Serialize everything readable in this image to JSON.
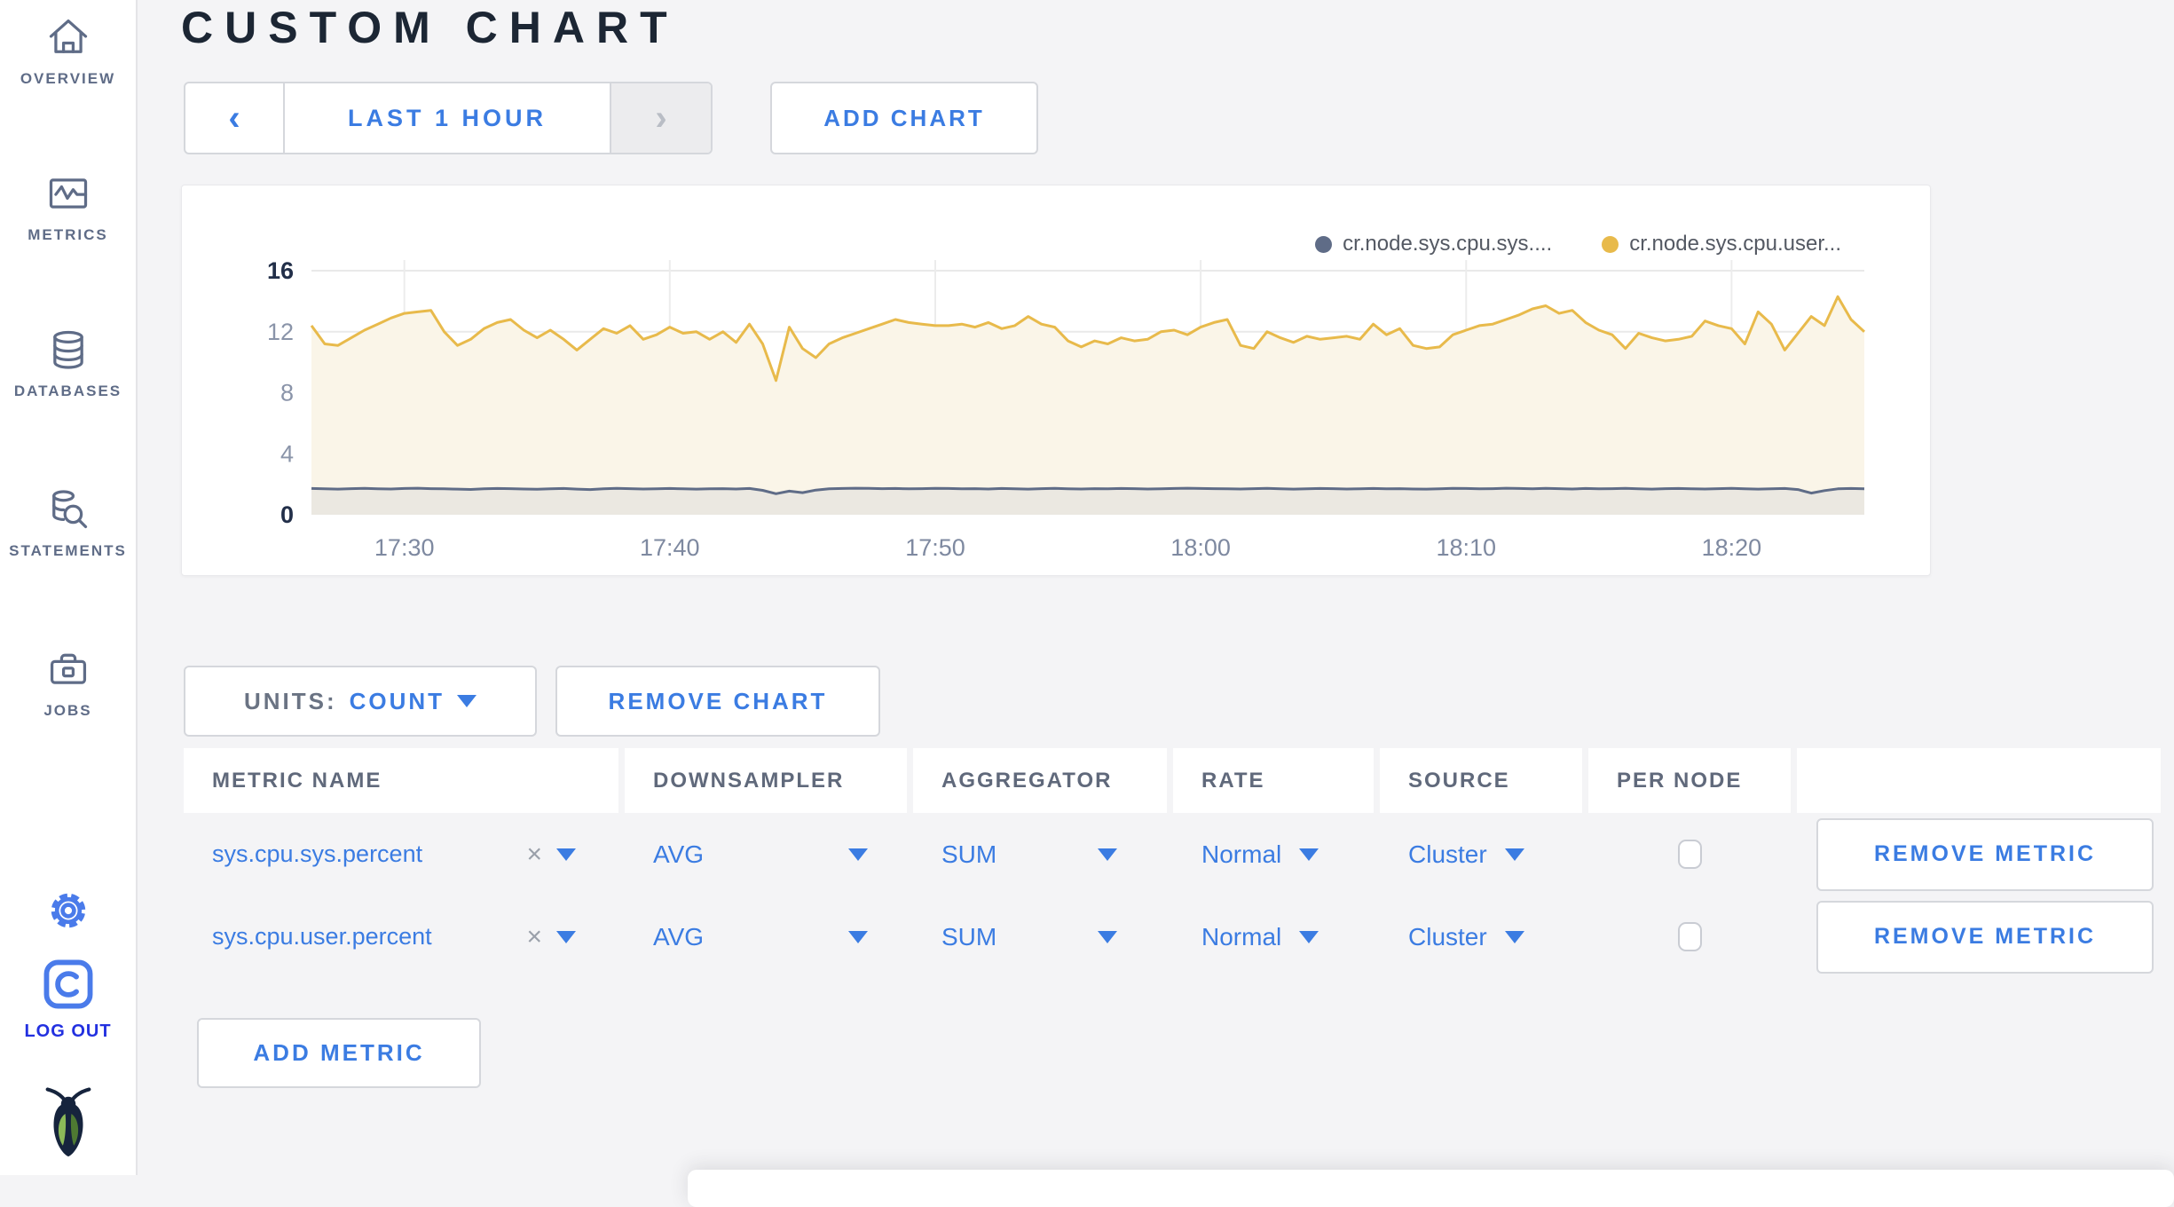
{
  "sidebar": {
    "items": [
      {
        "label": "OVERVIEW"
      },
      {
        "label": "METRICS"
      },
      {
        "label": "DATABASES"
      },
      {
        "label": "STATEMENTS"
      },
      {
        "label": "JOBS"
      }
    ],
    "logout_label": "LOG OUT"
  },
  "header": {
    "title": "CUSTOM CHART"
  },
  "toolbar": {
    "time_range_label": "LAST 1 HOUR",
    "prev_arrow": "‹",
    "next_arrow": "›",
    "add_chart_label": "ADD CHART"
  },
  "chart_controls": {
    "units_label": "UNITS:",
    "units_value": "COUNT",
    "remove_chart_label": "REMOVE CHART",
    "add_metric_label": "ADD METRIC"
  },
  "table": {
    "headers": [
      "METRIC NAME",
      "DOWNSAMPLER",
      "AGGREGATOR",
      "RATE",
      "SOURCE",
      "PER NODE"
    ],
    "clear_glyph": "×",
    "rows": [
      {
        "metric_name": "sys.cpu.sys.percent",
        "downsampler": "AVG",
        "aggregator": "SUM",
        "rate": "Normal",
        "source": "Cluster",
        "per_node_checked": false,
        "remove_label": "REMOVE METRIC"
      },
      {
        "metric_name": "sys.cpu.user.percent",
        "downsampler": "AVG",
        "aggregator": "SUM",
        "rate": "Normal",
        "source": "Cluster",
        "per_node_checked": false,
        "remove_label": "REMOVE METRIC"
      }
    ]
  },
  "chart_data": {
    "type": "area",
    "title": "",
    "xlabel": "",
    "ylabel": "",
    "ylim": [
      0,
      16
    ],
    "y_ticks": [
      0,
      4,
      8,
      12,
      16
    ],
    "grid": true,
    "legend_position": "top-right",
    "x_tick_labels": [
      "17:30",
      "17:40",
      "17:50",
      "18:00",
      "18:10",
      "18:20"
    ],
    "x_tick_indices": [
      7,
      27,
      47,
      67,
      87,
      107
    ],
    "series": [
      {
        "name": "cr.node.sys.cpu.sys....",
        "color": "#5f6c87",
        "fill": "#ebe8e1",
        "values": [
          1.72,
          1.7,
          1.68,
          1.71,
          1.73,
          1.7,
          1.69,
          1.72,
          1.74,
          1.71,
          1.7,
          1.68,
          1.66,
          1.7,
          1.72,
          1.71,
          1.69,
          1.67,
          1.7,
          1.72,
          1.68,
          1.65,
          1.7,
          1.73,
          1.71,
          1.69,
          1.7,
          1.72,
          1.7,
          1.68,
          1.7,
          1.71,
          1.69,
          1.72,
          1.6,
          1.38,
          1.55,
          1.45,
          1.62,
          1.7,
          1.72,
          1.74,
          1.73,
          1.71,
          1.72,
          1.7,
          1.71,
          1.73,
          1.72,
          1.7,
          1.71,
          1.69,
          1.72,
          1.7,
          1.68,
          1.71,
          1.73,
          1.7,
          1.69,
          1.71,
          1.7,
          1.72,
          1.71,
          1.69,
          1.7,
          1.72,
          1.74,
          1.72,
          1.71,
          1.7,
          1.69,
          1.71,
          1.73,
          1.7,
          1.68,
          1.7,
          1.72,
          1.71,
          1.69,
          1.7,
          1.72,
          1.7,
          1.71,
          1.69,
          1.68,
          1.7,
          1.73,
          1.72,
          1.7,
          1.71,
          1.74,
          1.72,
          1.7,
          1.73,
          1.71,
          1.69,
          1.72,
          1.7,
          1.71,
          1.73,
          1.7,
          1.68,
          1.71,
          1.72,
          1.7,
          1.69,
          1.71,
          1.73,
          1.7,
          1.68,
          1.7,
          1.72,
          1.65,
          1.42,
          1.58,
          1.7,
          1.72,
          1.7
        ]
      },
      {
        "name": "cr.node.sys.cpu.user...",
        "color": "#e8ba4b",
        "fill": "#faf5e8",
        "values": [
          12.4,
          11.2,
          11.1,
          11.6,
          12.1,
          12.5,
          12.9,
          13.2,
          13.3,
          13.4,
          12.0,
          11.1,
          11.5,
          12.2,
          12.6,
          12.8,
          12.1,
          11.6,
          12.1,
          11.5,
          10.8,
          11.5,
          12.2,
          11.9,
          12.4,
          11.5,
          11.8,
          12.3,
          11.9,
          12.0,
          11.5,
          12.0,
          11.3,
          12.5,
          11.2,
          8.8,
          12.3,
          10.9,
          10.3,
          11.2,
          11.6,
          11.9,
          12.2,
          12.5,
          12.8,
          12.6,
          12.5,
          12.4,
          12.4,
          12.5,
          12.3,
          12.6,
          12.2,
          12.4,
          13.0,
          12.5,
          12.3,
          11.4,
          11.0,
          11.4,
          11.2,
          11.6,
          11.4,
          11.5,
          12.0,
          12.1,
          11.8,
          12.3,
          12.6,
          12.8,
          11.1,
          10.9,
          12.0,
          11.6,
          11.3,
          11.7,
          11.5,
          11.6,
          11.7,
          11.5,
          12.5,
          11.8,
          12.2,
          11.1,
          10.9,
          11.0,
          11.8,
          12.1,
          12.4,
          12.5,
          12.8,
          13.1,
          13.5,
          13.7,
          13.2,
          13.4,
          12.6,
          12.1,
          11.8,
          10.9,
          11.9,
          11.6,
          11.4,
          11.5,
          11.7,
          12.7,
          12.4,
          12.2,
          11.2,
          13.3,
          12.5,
          10.8,
          11.9,
          13.0,
          12.4,
          14.3,
          12.8,
          12.0
        ]
      }
    ]
  },
  "colors": {
    "accent_blue": "#3b7ce2",
    "logout_blue": "#2230e0",
    "sidebar_gray": "#5f6c87",
    "series_yellow": "#e8ba4b",
    "series_slate": "#5f6c87"
  }
}
